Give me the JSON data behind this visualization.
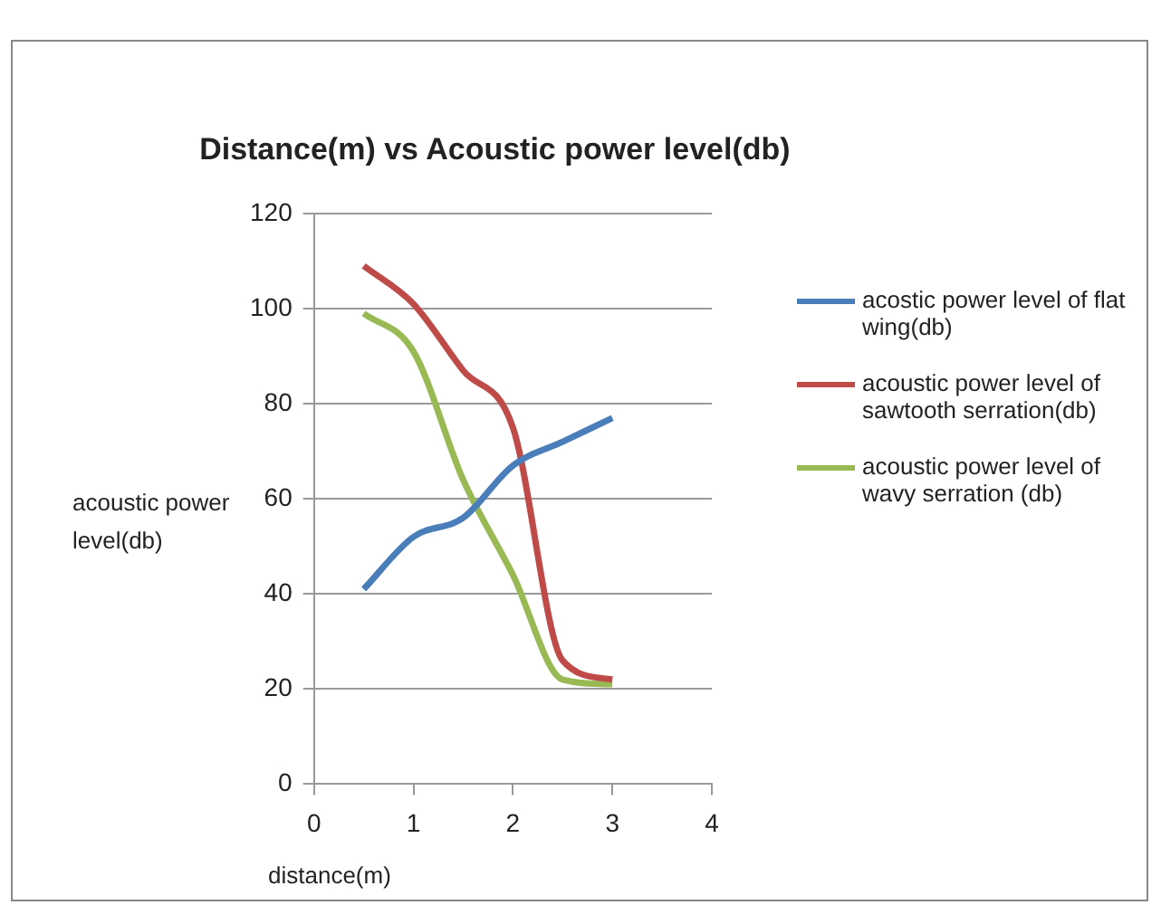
{
  "chart_data": {
    "type": "line",
    "title": "Distance(m) vs Acoustic power level(db)",
    "xlabel": "distance(m)",
    "ylabel": "acoustic power level(db)",
    "x": [
      0.5,
      1,
      1.5,
      2,
      2.5,
      3
    ],
    "series": [
      {
        "name": "acostic power level of flat wing(db)",
        "color": "#4a7ebb",
        "values": [
          41,
          52,
          56,
          67,
          72,
          77
        ]
      },
      {
        "name": "acoustic power level of sawtooth serration(db)",
        "color": "#be4b48",
        "values": [
          109,
          101,
          87,
          75,
          26,
          22
        ]
      },
      {
        "name": "acoustic power level of wavy serration (db)",
        "color": "#98b954",
        "values": [
          99,
          91,
          64,
          44,
          22,
          21
        ]
      }
    ],
    "xlim": [
      0,
      4
    ],
    "xticks": [
      0,
      1,
      2,
      3,
      4
    ],
    "ylim": [
      0,
      120
    ],
    "yticks": [
      0,
      20,
      40,
      60,
      80,
      100,
      120
    ],
    "grid": "y",
    "legend": "right",
    "marker": "none",
    "line_style": "solid"
  }
}
